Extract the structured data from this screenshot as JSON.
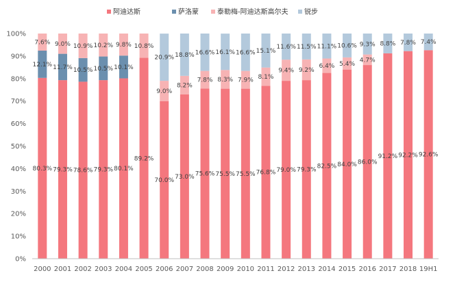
{
  "chart_data": {
    "type": "bar",
    "stacked": true,
    "title": "",
    "xlabel": "",
    "ylabel": "",
    "ylim": [
      0,
      100
    ],
    "yticks": [
      "0%",
      "10%",
      "20%",
      "30%",
      "40%",
      "50%",
      "60%",
      "70%",
      "80%",
      "90%",
      "100%"
    ],
    "grid": false,
    "legend_position": "top",
    "categories": [
      "2000",
      "2001",
      "2002",
      "2003",
      "2004",
      "2005",
      "2006",
      "2007",
      "2008",
      "2009",
      "2010",
      "2011",
      "2012",
      "2013",
      "2014",
      "2015",
      "2016",
      "2017",
      "2018",
      "19H1"
    ],
    "series": [
      {
        "name": "阿迪达斯",
        "color": "#F4777E",
        "values": [
          80.3,
          79.3,
          78.6,
          79.3,
          80.1,
          89.2,
          70.0,
          73.0,
          75.6,
          75.5,
          75.5,
          76.8,
          79.0,
          79.3,
          82.5,
          84.0,
          86.0,
          91.2,
          92.2,
          92.6
        ],
        "labels": [
          "80.3%",
          "79.3%",
          "78.6%",
          "79.3%",
          "80.1%",
          "89.2%",
          "70.0%",
          "73.0%",
          "75.6%",
          "75.5%",
          "75.5%",
          "76.8%",
          "79.0%",
          "79.3%",
          "82.5%",
          "84.0%",
          "86.0%",
          "91.2%",
          "92.2%",
          "92.6%"
        ]
      },
      {
        "name": "萨洛蒙",
        "color": "#6B8FAE",
        "values": [
          12.1,
          11.7,
          10.5,
          10.5,
          10.1,
          0,
          0,
          0,
          0,
          0,
          0,
          0,
          0,
          0,
          0,
          0,
          0,
          0,
          0,
          0
        ],
        "labels": [
          "12.1%",
          "11.7%",
          "10.5%",
          "10.5%",
          "10.1%",
          "",
          "",
          "",
          "",
          "",
          "",
          "",
          "",
          "",
          "",
          "",
          "",
          "",
          "",
          ""
        ]
      },
      {
        "name": "泰勒梅-阿迪达斯高尔夫",
        "color": "#F7B3B4",
        "values": [
          7.6,
          9.0,
          10.9,
          10.2,
          9.8,
          10.8,
          9.0,
          8.2,
          7.8,
          8.3,
          7.9,
          8.1,
          9.4,
          9.2,
          6.4,
          5.4,
          4.7,
          0,
          0,
          0
        ],
        "labels": [
          "7.6%",
          "9.0%",
          "10.9%",
          "10.2%",
          "9.8%",
          "10.8%",
          "9.0%",
          "8.2%",
          "7.8%",
          "8.3%",
          "7.9%",
          "8.1%",
          "9.4%",
          "9.2%",
          "6.4%",
          "5.4%",
          "4.7%",
          "",
          "",
          ""
        ]
      },
      {
        "name": "锐步",
        "color": "#B3C9DC",
        "values": [
          0,
          0,
          0,
          0,
          0,
          0,
          20.9,
          18.8,
          16.6,
          16.1,
          16.6,
          15.1,
          11.6,
          11.5,
          11.1,
          10.6,
          9.3,
          8.8,
          7.8,
          7.4
        ],
        "labels": [
          "",
          "",
          "",
          "",
          "",
          "",
          "20.9%",
          "18.8%",
          "16.6%",
          "16.1%",
          "16.6%",
          "15.1%",
          "11.6%",
          "11.5%",
          "11.1%",
          "10.6%",
          "9.3%",
          "8.8%",
          "7.8%",
          "7.4%"
        ]
      }
    ]
  }
}
